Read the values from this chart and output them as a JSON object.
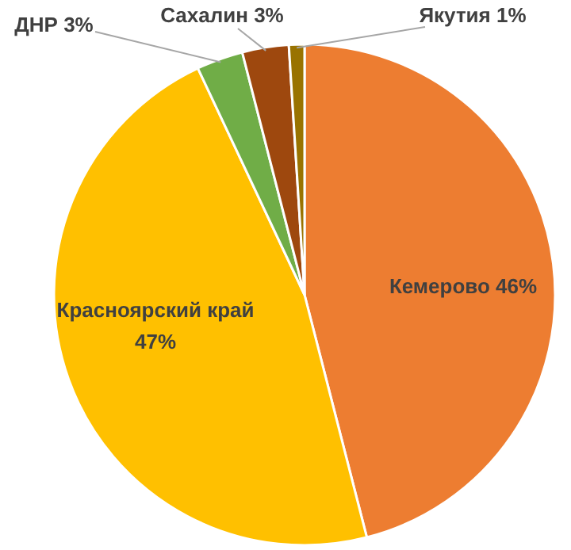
{
  "chart_data": {
    "type": "pie",
    "categories": [
      "Кемерово",
      "Красноярский край",
      "ДНР",
      "Сахалин",
      "Якутия"
    ],
    "values": [
      46,
      47,
      3,
      3,
      1
    ],
    "value_labels": [
      "46%",
      "47%",
      "3%",
      "3%",
      "1%"
    ],
    "colors": [
      "#ed7d31",
      "#ffc000",
      "#70ad47",
      "#9e480e",
      "#997300"
    ]
  }
}
